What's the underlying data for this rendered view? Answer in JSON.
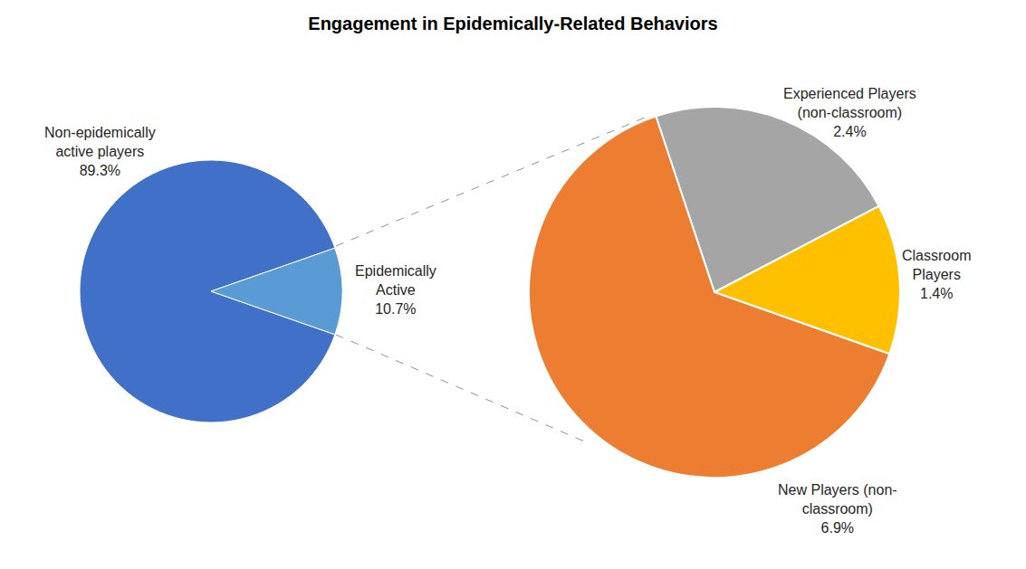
{
  "chart_data": [
    {
      "type": "pie",
      "title": "Engagement in Epidemically-Related Behaviors",
      "categories": [
        "Non-epidemically active players",
        "Epidemically Active"
      ],
      "values": [
        89.3,
        10.7
      ],
      "value_labels": [
        "89.3%",
        "10.7%"
      ],
      "colors": [
        "#4170c8",
        "#5b9bd5"
      ],
      "data_labels": true
    },
    {
      "type": "pie",
      "categories": [
        "Experienced Players (non-classroom)",
        "Classroom Players",
        "New Players (non-classroom)"
      ],
      "values": [
        2.4,
        1.4,
        6.9
      ],
      "value_labels": [
        "2.4%",
        "1.4%",
        "6.9%"
      ],
      "colors": [
        "#a5a5a5",
        "#ffc000",
        "#ed7d31"
      ],
      "data_labels": true
    }
  ]
}
